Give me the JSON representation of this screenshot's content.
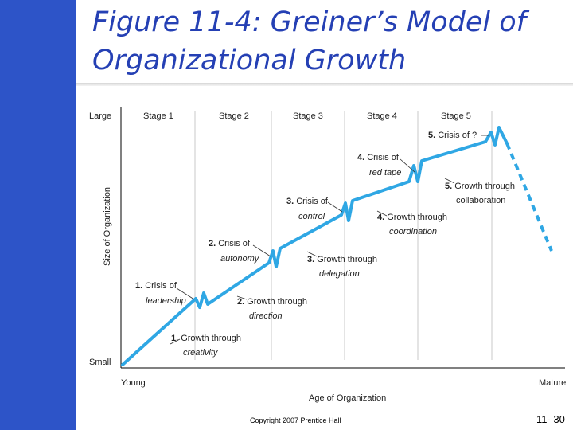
{
  "slide": {
    "title_line1": "Figure 11-4: Greiner’s Model of",
    "title_line2": "Organizational Growth",
    "copyright": "Copyright 2007 Prentice Hall",
    "slide_number": "11- 30"
  },
  "diagram": {
    "y_top_label": "Large",
    "y_bottom_label": "Small",
    "y_axis_title": "Size of Organization",
    "x_left_label": "Young",
    "x_right_label": "Mature",
    "x_axis_title": "Age of Organization",
    "stages": [
      "Stage 1",
      "Stage 2",
      "Stage 3",
      "Stage 4",
      "Stage 5"
    ],
    "phases": [
      {
        "num": "1.",
        "line1": "Growth through",
        "line2": "creativity"
      },
      {
        "num": "2.",
        "line1": "Growth through",
        "line2": "direction"
      },
      {
        "num": "3.",
        "line1": "Growth through",
        "line2": "delegation"
      },
      {
        "num": "4.",
        "line1": "Growth through",
        "line2": "coordination"
      },
      {
        "num": "5.",
        "line1": "Growth through",
        "line2": "collaboration"
      }
    ],
    "crises": [
      {
        "num": "1.",
        "line1": "Crisis of",
        "line2": "leadership"
      },
      {
        "num": "2.",
        "line1": "Crisis of",
        "line2": "autonomy"
      },
      {
        "num": "3.",
        "line1": "Crisis of",
        "line2": "control"
      },
      {
        "num": "4.",
        "line1": "Crisis of",
        "line2": "red tape"
      },
      {
        "num": "5.",
        "line1": "Crisis of ?",
        "line2": ""
      }
    ],
    "line_color": "#2fa7e4"
  }
}
